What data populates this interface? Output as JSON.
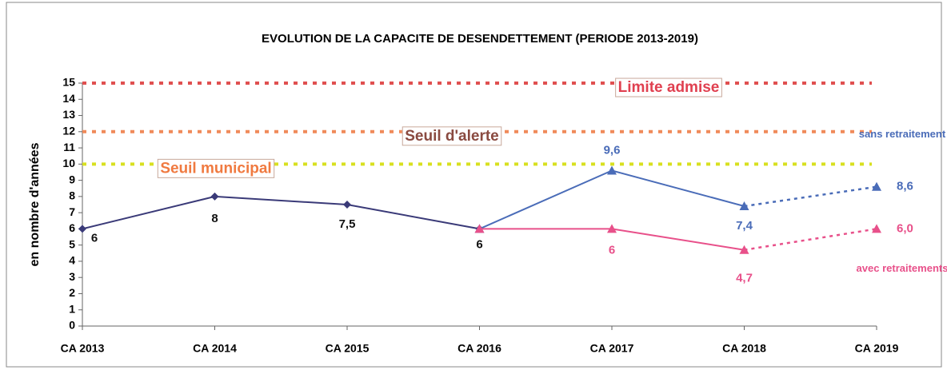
{
  "chart_data": {
    "type": "line",
    "title": "EVOLUTION DE LA CAPACITE DE DESENDETTEMENT (PERIODE 2013-2019)",
    "y_label": "en nombre d'années",
    "categories": [
      "CA 2013",
      "CA 2014",
      "CA 2015",
      "CA 2016",
      "CA 2017",
      "CA 2018",
      "CA 2019"
    ],
    "ylim": [
      0,
      15
    ],
    "yticks": [
      0,
      1,
      2,
      3,
      4,
      5,
      6,
      7,
      8,
      9,
      10,
      11,
      12,
      13,
      14,
      15
    ],
    "grid": false,
    "series": [
      {
        "color": "#3a3a78",
        "marker": "diamond",
        "dashed_last": false,
        "values": [
          6,
          8,
          7.5,
          6,
          null,
          null,
          null
        ],
        "value_labels": [
          "6",
          "8",
          "7,5",
          "6",
          null,
          null,
          null
        ]
      },
      {
        "name": "sans retraitement",
        "color": "#4a6cb8",
        "marker": "triangle",
        "dashed_last": true,
        "values": [
          null,
          null,
          null,
          6,
          9.6,
          7.4,
          8.6
        ],
        "value_labels": [
          null,
          null,
          null,
          null,
          "9,6",
          "7,4",
          "8,6"
        ]
      },
      {
        "name": "avec retraitements",
        "color": "#e8508a",
        "marker": "triangle",
        "dashed_last": true,
        "values": [
          null,
          null,
          null,
          6,
          6,
          4.7,
          6.0
        ],
        "value_labels": [
          null,
          null,
          null,
          null,
          "6",
          "4,7",
          "6,0"
        ]
      }
    ],
    "reference_lines": [
      {
        "label": "Limite admise",
        "value": 15,
        "color": "#e05050",
        "text_color": "#e04050"
      },
      {
        "label": "Seuil d'alerte",
        "value": 12,
        "color": "#f08a5a",
        "text_color": "#8a4a40"
      },
      {
        "label": "Seuil municipal",
        "value": 10,
        "color": "#d8e020",
        "text_color": "#f07a40"
      }
    ]
  }
}
